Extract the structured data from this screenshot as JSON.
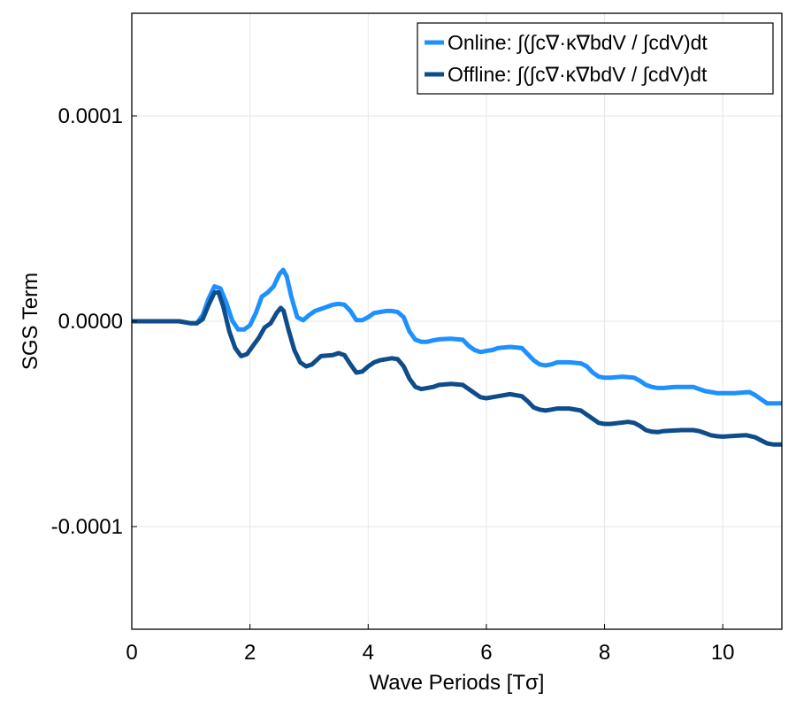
{
  "chart_data": {
    "type": "line",
    "xlabel": "Wave Periods [Tσ]",
    "ylabel": "SGS Term",
    "xlim": [
      0,
      11
    ],
    "ylim": [
      -0.00015,
      0.00015
    ],
    "xticks": [
      0,
      2,
      4,
      6,
      8,
      10
    ],
    "xtick_labels": [
      "0",
      "2",
      "4",
      "6",
      "8",
      "10"
    ],
    "yticks": [
      -0.0001,
      0.0,
      0.0001
    ],
    "ytick_labels": [
      "-0.0001",
      "0.0000",
      "0.0001"
    ],
    "grid": true,
    "legend_position": "top-right",
    "series": [
      {
        "name": "Online: ∫(∫c∇·κ∇bdV / ∫cdV)dt",
        "color": "#1e90ff",
        "x": [
          0,
          0.4,
          0.8,
          1.0,
          1.1,
          1.2,
          1.3,
          1.4,
          1.5,
          1.6,
          1.7,
          1.8,
          1.9,
          2.0,
          2.1,
          2.2,
          2.3,
          2.4,
          2.5,
          2.56,
          2.62,
          2.7,
          2.8,
          2.9,
          3.0,
          3.1,
          3.2,
          3.3,
          3.4,
          3.5,
          3.6,
          3.7,
          3.8,
          3.9,
          4.0,
          4.1,
          4.2,
          4.3,
          4.4,
          4.5,
          4.6,
          4.7,
          4.8,
          4.9,
          5.0,
          5.1,
          5.2,
          5.4,
          5.6,
          5.7,
          5.8,
          5.9,
          6.0,
          6.1,
          6.2,
          6.4,
          6.6,
          6.7,
          6.8,
          6.9,
          7.0,
          7.1,
          7.2,
          7.4,
          7.6,
          7.7,
          7.8,
          7.9,
          8.0,
          8.1,
          8.3,
          8.5,
          8.6,
          8.7,
          8.8,
          8.9,
          9.0,
          9.2,
          9.5,
          9.6,
          9.7,
          9.8,
          9.9,
          10.0,
          10.2,
          10.45,
          10.55,
          10.65,
          10.75,
          10.85,
          11.0
        ],
        "y": [
          0,
          0,
          0,
          -1e-06,
          -1e-06,
          3e-06,
          1.1e-05,
          1.7e-05,
          1.6e-05,
          9e-06,
          3e-07,
          -4e-06,
          -4e-06,
          -2e-06,
          4e-06,
          1.2e-05,
          1.4e-05,
          1.7e-05,
          2.3e-05,
          2.5e-05,
          2.2e-05,
          1.2e-05,
          2e-06,
          5e-07,
          3e-06,
          5e-06,
          6e-06,
          7e-06,
          8e-06,
          8.5e-06,
          8e-06,
          5e-06,
          5e-07,
          5e-07,
          2e-06,
          4e-06,
          4.5e-06,
          5e-06,
          5e-06,
          4.5e-06,
          2e-06,
          -5e-06,
          -9e-06,
          -1e-05,
          -1e-05,
          -9.3e-06,
          -8.8e-06,
          -8.5e-06,
          -9e-06,
          -1.2e-05,
          -1.4e-05,
          -1.5e-05,
          -1.45e-05,
          -1.4e-05,
          -1.3e-05,
          -1.25e-05,
          -1.3e-05,
          -1.6e-05,
          -1.9e-05,
          -2.1e-05,
          -2.15e-05,
          -2.1e-05,
          -2e-05,
          -2e-05,
          -2.05e-05,
          -2.2e-05,
          -2.5e-05,
          -2.7e-05,
          -2.75e-05,
          -2.75e-05,
          -2.7e-05,
          -2.75e-05,
          -2.9e-05,
          -3.1e-05,
          -3.2e-05,
          -3.25e-05,
          -3.25e-05,
          -3.2e-05,
          -3.2e-05,
          -3.3e-05,
          -3.4e-05,
          -3.45e-05,
          -3.5e-05,
          -3.5e-05,
          -3.5e-05,
          -3.45e-05,
          -3.6e-05,
          -3.8e-05,
          -4e-05,
          -4e-05,
          -4e-05
        ]
      },
      {
        "name": "Offline: ∫(∫c∇·κ∇bdV / ∫cdV)dt",
        "color": "#0f4c8a",
        "x": [
          0,
          0.4,
          0.8,
          1.0,
          1.1,
          1.2,
          1.3,
          1.4,
          1.47,
          1.55,
          1.65,
          1.75,
          1.85,
          1.95,
          2.05,
          2.15,
          2.25,
          2.35,
          2.45,
          2.52,
          2.57,
          2.65,
          2.75,
          2.85,
          2.95,
          3.05,
          3.2,
          3.4,
          3.5,
          3.6,
          3.7,
          3.8,
          3.9,
          4.0,
          4.1,
          4.2,
          4.3,
          4.4,
          4.5,
          4.6,
          4.7,
          4.8,
          4.9,
          5.0,
          5.1,
          5.2,
          5.4,
          5.6,
          5.7,
          5.8,
          5.9,
          6.0,
          6.1,
          6.2,
          6.4,
          6.6,
          6.7,
          6.8,
          6.9,
          7.0,
          7.1,
          7.2,
          7.4,
          7.6,
          7.7,
          7.8,
          7.9,
          8.0,
          8.1,
          8.4,
          8.5,
          8.6,
          8.7,
          8.8,
          8.9,
          9.0,
          9.3,
          9.5,
          9.6,
          9.7,
          9.8,
          9.9,
          10.0,
          10.2,
          10.4,
          10.55,
          10.65,
          10.75,
          10.85,
          11.0
        ],
        "y": [
          0,
          0,
          0,
          -1e-06,
          -1e-06,
          1e-06,
          8e-06,
          1.4e-05,
          1.4e-05,
          7e-06,
          -5e-06,
          -1.3e-05,
          -1.7e-05,
          -1.6e-05,
          -1.2e-05,
          -8e-06,
          -3e-06,
          -1e-06,
          4e-06,
          6.5e-06,
          5e-06,
          -4e-06,
          -1.4e-05,
          -2e-05,
          -2.2e-05,
          -2.1e-05,
          -1.7e-05,
          -1.65e-05,
          -1.55e-05,
          -1.65e-05,
          -2.1e-05,
          -2.5e-05,
          -2.45e-05,
          -2.2e-05,
          -2e-05,
          -1.9e-05,
          -1.85e-05,
          -1.8e-05,
          -1.85e-05,
          -2.2e-05,
          -2.8e-05,
          -3.2e-05,
          -3.3e-05,
          -3.25e-05,
          -3.2e-05,
          -3.1e-05,
          -3.05e-05,
          -3.1e-05,
          -3.3e-05,
          -3.5e-05,
          -3.7e-05,
          -3.75e-05,
          -3.7e-05,
          -3.65e-05,
          -3.55e-05,
          -3.65e-05,
          -3.9e-05,
          -4.2e-05,
          -4.3e-05,
          -4.35e-05,
          -4.3e-05,
          -4.25e-05,
          -4.25e-05,
          -4.35e-05,
          -4.55e-05,
          -4.75e-05,
          -4.95e-05,
          -5e-05,
          -5e-05,
          -4.9e-05,
          -4.95e-05,
          -5.1e-05,
          -5.3e-05,
          -5.38e-05,
          -5.4e-05,
          -5.35e-05,
          -5.3e-05,
          -5.3e-05,
          -5.35e-05,
          -5.45e-05,
          -5.55e-05,
          -5.6e-05,
          -5.62e-05,
          -5.58e-05,
          -5.55e-05,
          -5.65e-05,
          -5.8e-05,
          -5.95e-05,
          -6e-05,
          -6e-05
        ]
      }
    ]
  }
}
